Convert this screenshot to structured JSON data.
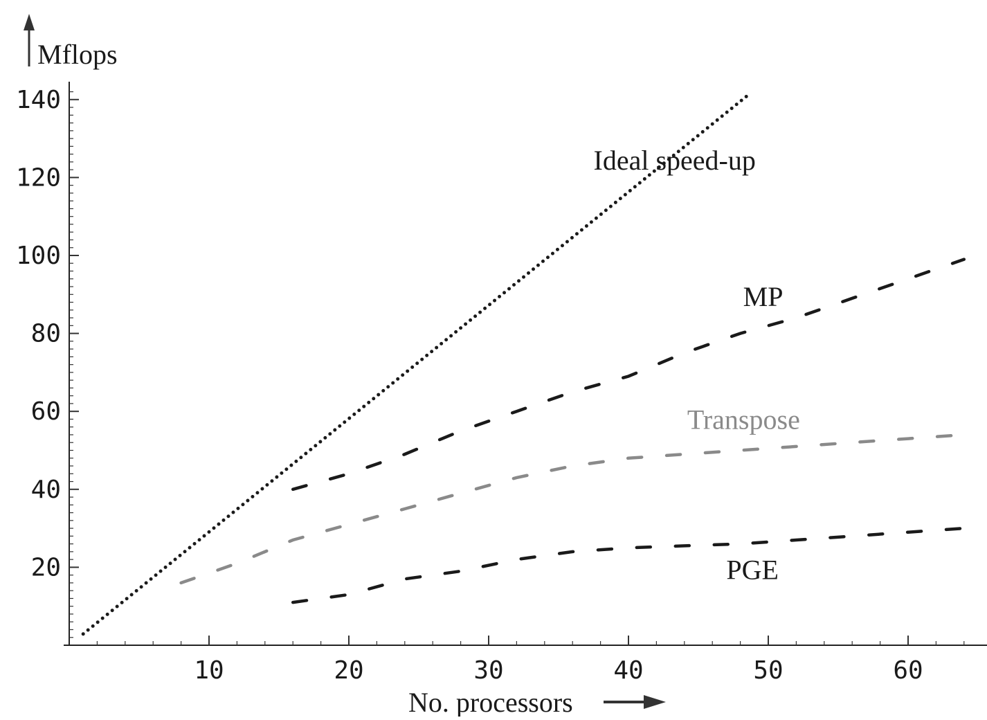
{
  "chart_data": {
    "type": "line",
    "title": "",
    "xlabel": "No. processors",
    "ylabel": "Mflops",
    "xlim": [
      0,
      65
    ],
    "ylim": [
      0,
      142
    ],
    "x_ticks": [
      10,
      20,
      30,
      40,
      50,
      60
    ],
    "y_ticks": [
      20,
      40,
      60,
      80,
      100,
      120,
      140
    ],
    "grid": false,
    "legend": "none",
    "series": [
      {
        "name": "Ideal speed-up",
        "style": "dotted",
        "color": "#1a1a1a",
        "points": [
          [
            1,
            2.9
          ],
          [
            48.5,
            141
          ]
        ]
      },
      {
        "name": "MP",
        "style": "dashed",
        "color": "#1a1a1a",
        "points": [
          [
            16,
            40
          ],
          [
            20,
            44
          ],
          [
            24,
            49
          ],
          [
            28,
            55
          ],
          [
            32,
            60
          ],
          [
            36,
            65
          ],
          [
            40,
            69
          ],
          [
            44,
            75
          ],
          [
            48,
            80
          ],
          [
            52,
            84
          ],
          [
            56,
            89
          ],
          [
            60,
            94
          ],
          [
            64,
            99
          ]
        ]
      },
      {
        "name": "Transpose",
        "style": "dashed",
        "color": "#8a8a8a",
        "points": [
          [
            8,
            16
          ],
          [
            12,
            21
          ],
          [
            16,
            27
          ],
          [
            20,
            31
          ],
          [
            24,
            35
          ],
          [
            28,
            39
          ],
          [
            32,
            43
          ],
          [
            36,
            46
          ],
          [
            40,
            48
          ],
          [
            44,
            49
          ],
          [
            48,
            50
          ],
          [
            52,
            51
          ],
          [
            56,
            52
          ],
          [
            60,
            53
          ],
          [
            64,
            54
          ]
        ]
      },
      {
        "name": "PGE",
        "style": "dashed",
        "color": "#1a1a1a",
        "points": [
          [
            16,
            11
          ],
          [
            20,
            13
          ],
          [
            24,
            17
          ],
          [
            28,
            19
          ],
          [
            32,
            22
          ],
          [
            36,
            24
          ],
          [
            40,
            25
          ],
          [
            44,
            25.5
          ],
          [
            48,
            26
          ],
          [
            52,
            27
          ],
          [
            56,
            28
          ],
          [
            60,
            29
          ],
          [
            64,
            30
          ]
        ]
      }
    ],
    "annotations": [
      {
        "text": "Ideal speed-up",
        "x": 37.5,
        "y": 122
      },
      {
        "text": "MP",
        "x": 48.2,
        "y": 87
      },
      {
        "text": "Transpose",
        "x": 44.2,
        "y": 55.5
      },
      {
        "text": "PGE",
        "x": 47,
        "y": 17
      }
    ]
  }
}
